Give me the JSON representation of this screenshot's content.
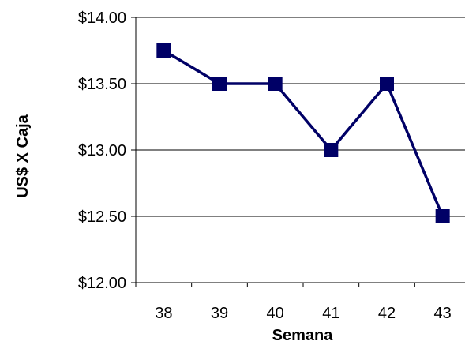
{
  "chart_data": {
    "type": "line",
    "title": "",
    "xlabel": "Semana",
    "ylabel": "US$ X Caja",
    "categories": [
      "38",
      "39",
      "40",
      "41",
      "42",
      "43"
    ],
    "series": [
      {
        "values": [
          13.75,
          13.5,
          13.5,
          13.0,
          13.5,
          12.5
        ],
        "color": "#000066",
        "marker": "square"
      }
    ],
    "ylim": [
      12.0,
      14.0
    ],
    "yticks": [
      12.0,
      12.5,
      13.0,
      13.5,
      14.0
    ],
    "ytick_labels": [
      "$12.00",
      "$12.50",
      "$13.00",
      "$13.50",
      "$14.00"
    ],
    "grid": true,
    "legend": "none"
  }
}
